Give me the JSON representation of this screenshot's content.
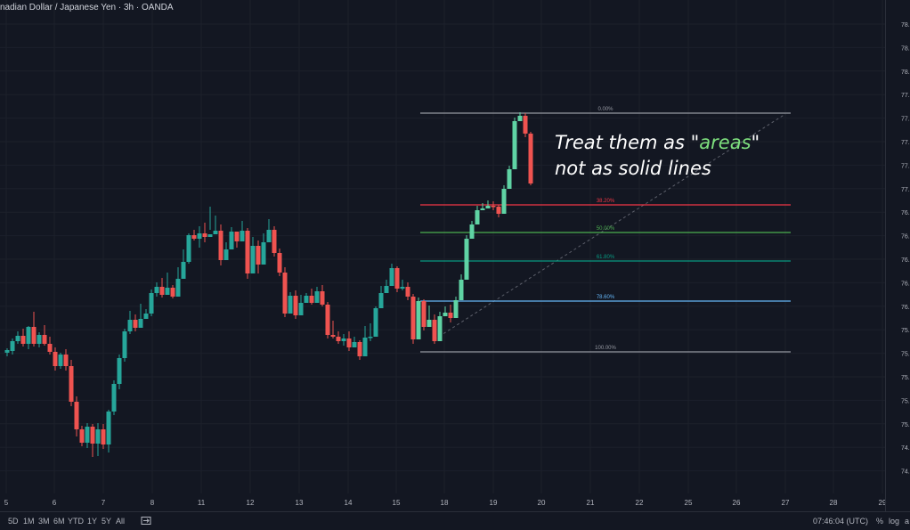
{
  "header": {
    "symbol_title": "nadian Dollar / Japanese Yen · 3h · OANDA"
  },
  "annotation": {
    "line1_prefix": "Treat them as \"",
    "line1_word": "areas",
    "line1_suffix": "\"",
    "line2": "not as solid lines"
  },
  "colors": {
    "up": "#26a69a",
    "up_light": "#5fd3a4",
    "down": "#ef5350",
    "fib_0": "#9598a1",
    "fib_382": "#f23645",
    "fib_50": "#4caf50",
    "fib_618": "#089981",
    "fib_786": "#64b5f6",
    "fib_100": "#9598a1"
  },
  "fib_levels": [
    {
      "label": "0.00%",
      "key": "fib_0"
    },
    {
      "label": "38.20%",
      "key": "fib_382"
    },
    {
      "label": "50.00%",
      "key": "fib_50"
    },
    {
      "label": "61.80%",
      "key": "fib_618"
    },
    {
      "label": "78.60%",
      "key": "fib_786"
    },
    {
      "label": "100.00%",
      "key": "fib_100"
    }
  ],
  "price_axis_labels": [
    "78.",
    "78.",
    "78.",
    "77.",
    "77.",
    "77.",
    "77.",
    "77.",
    "76.",
    "76.",
    "76.",
    "76.",
    "76.",
    "75.",
    "75.",
    "75.",
    "75.",
    "75.",
    "74.",
    "74."
  ],
  "time_axis_labels": [
    "5",
    "6",
    "7",
    "8",
    "11",
    "12",
    "13",
    "14",
    "15",
    "18",
    "19",
    "20",
    "21",
    "22",
    "25",
    "26",
    "27",
    "28",
    "29"
  ],
  "bottom_bar": {
    "ranges": [
      "5D",
      "1M",
      "3M",
      "6M",
      "YTD",
      "1Y",
      "5Y",
      "All"
    ],
    "time": "07:46:04 (UTC)",
    "percent": "%",
    "log": "log",
    "auto": "a"
  },
  "chart_data": {
    "type": "candlestick",
    "candles": [
      [
        8,
        396,
        393,
        400,
        391
      ],
      [
        14,
        394,
        383,
        398,
        380
      ],
      [
        20,
        383,
        377,
        386,
        372
      ],
      [
        26,
        377,
        386,
        389,
        369
      ],
      [
        32,
        386,
        367,
        392,
        366
      ],
      [
        38,
        367,
        386,
        389,
        350
      ],
      [
        44,
        386,
        376,
        390,
        373
      ],
      [
        50,
        376,
        386,
        388,
        365
      ],
      [
        56,
        386,
        395,
        398,
        378
      ],
      [
        62,
        395,
        411,
        416,
        390
      ],
      [
        68,
        411,
        398,
        414,
        396
      ],
      [
        74,
        398,
        411,
        416,
        392
      ],
      [
        80,
        411,
        451,
        456,
        404
      ],
      [
        86,
        451,
        482,
        490,
        445
      ],
      [
        92,
        482,
        497,
        501,
        478
      ],
      [
        98,
        497,
        479,
        503,
        475
      ],
      [
        104,
        479,
        498,
        513,
        476
      ],
      [
        110,
        498,
        482,
        512,
        475
      ],
      [
        116,
        482,
        499,
        504,
        476
      ],
      [
        122,
        499,
        462,
        508,
        460
      ],
      [
        128,
        462,
        431,
        466,
        427
      ],
      [
        134,
        431,
        402,
        437,
        398
      ],
      [
        140,
        402,
        372,
        406,
        369
      ],
      [
        146,
        372,
        359,
        375,
        349
      ],
      [
        152,
        359,
        368,
        372,
        353
      ],
      [
        158,
        368,
        358,
        362,
        341
      ],
      [
        164,
        358,
        352,
        358,
        347
      ],
      [
        170,
        352,
        329,
        355,
        325
      ],
      [
        176,
        329,
        322,
        333,
        317
      ],
      [
        182,
        322,
        331,
        334,
        312
      ],
      [
        188,
        331,
        323,
        328,
        306
      ],
      [
        194,
        323,
        333,
        335,
        320
      ],
      [
        200,
        333,
        313,
        318,
        300
      ],
      [
        206,
        313,
        294,
        298,
        280
      ],
      [
        212,
        294,
        264,
        296,
        262
      ],
      [
        218,
        264,
        268,
        270,
        258
      ],
      [
        224,
        268,
        262,
        278,
        254
      ],
      [
        230,
        262,
        266,
        272,
        250
      ],
      [
        236,
        266,
        263,
        258,
        232
      ],
      [
        242,
        263,
        259,
        259,
        242
      ],
      [
        248,
        259,
        292,
        298,
        252
      ],
      [
        254,
        292,
        280,
        286,
        272
      ],
      [
        260,
        280,
        260,
        275,
        255
      ],
      [
        266,
        260,
        271,
        278,
        262
      ],
      [
        272,
        271,
        259,
        266,
        248
      ],
      [
        278,
        259,
        307,
        313,
        256
      ],
      [
        284,
        307,
        276,
        284,
        266
      ],
      [
        290,
        276,
        297,
        307,
        270
      ],
      [
        296,
        297,
        272,
        278,
        262
      ],
      [
        302,
        272,
        258,
        264,
        246
      ],
      [
        308,
        258,
        284,
        288,
        254
      ],
      [
        314,
        284,
        306,
        310,
        279
      ],
      [
        320,
        306,
        352,
        356,
        300
      ],
      [
        326,
        352,
        332,
        334,
        328
      ],
      [
        332,
        332,
        354,
        358,
        326
      ],
      [
        338,
        354,
        340,
        342,
        331
      ],
      [
        344,
        340,
        332,
        336,
        329
      ],
      [
        350,
        332,
        340,
        342,
        324
      ],
      [
        356,
        340,
        327,
        330,
        322
      ],
      [
        362,
        327,
        342,
        344,
        320
      ],
      [
        368,
        342,
        376,
        380,
        339
      ],
      [
        374,
        376,
        378,
        380,
        360
      ],
      [
        380,
        378,
        383,
        386,
        372
      ],
      [
        386,
        383,
        380,
        388,
        375
      ],
      [
        392,
        380,
        390,
        394,
        372
      ],
      [
        398,
        390,
        384,
        388,
        378
      ],
      [
        404,
        384,
        400,
        404,
        382
      ],
      [
        410,
        400,
        379,
        383,
        366
      ],
      [
        416,
        379,
        378,
        383,
        363
      ],
      [
        422,
        378,
        346,
        350,
        344
      ],
      [
        428,
        346,
        329,
        332,
        321
      ],
      [
        434,
        329,
        321,
        325,
        314
      ],
      [
        440,
        321,
        301,
        304,
        296
      ],
      [
        446,
        301,
        324,
        328,
        299
      ],
      [
        452,
        324,
        322,
        326,
        314
      ],
      [
        458,
        322,
        333,
        337,
        317
      ],
      [
        464,
        333,
        381,
        386,
        330
      ],
      [
        470,
        381,
        338,
        342,
        334
      ],
      [
        476,
        338,
        367,
        371,
        336
      ],
      [
        482,
        367,
        359,
        363,
        343
      ],
      [
        488,
        359,
        383,
        386,
        353
      ],
      [
        494,
        383,
        355,
        358,
        350
      ],
      [
        500,
        355,
        351,
        354,
        344
      ],
      [
        506,
        351,
        357,
        362,
        342
      ],
      [
        512,
        357,
        337,
        341,
        333
      ],
      [
        518,
        337,
        314,
        318,
        308
      ],
      [
        524,
        314,
        268,
        271,
        264
      ],
      [
        530,
        268,
        252,
        255,
        248
      ],
      [
        536,
        252,
        236,
        239,
        231
      ],
      [
        542,
        236,
        234,
        236,
        228
      ],
      [
        548,
        234,
        231,
        232,
        225
      ],
      [
        554,
        231,
        232,
        236,
        226
      ],
      [
        560,
        232,
        240,
        244,
        230
      ],
      [
        566,
        240,
        212,
        214,
        208
      ],
      [
        572,
        212,
        190,
        194,
        186
      ],
      [
        578,
        190,
        136,
        139,
        132
      ],
      [
        584,
        136,
        130,
        134,
        126
      ],
      [
        590,
        130,
        150,
        154,
        127
      ],
      [
        596,
        150,
        206,
        208,
        148
      ]
    ]
  }
}
